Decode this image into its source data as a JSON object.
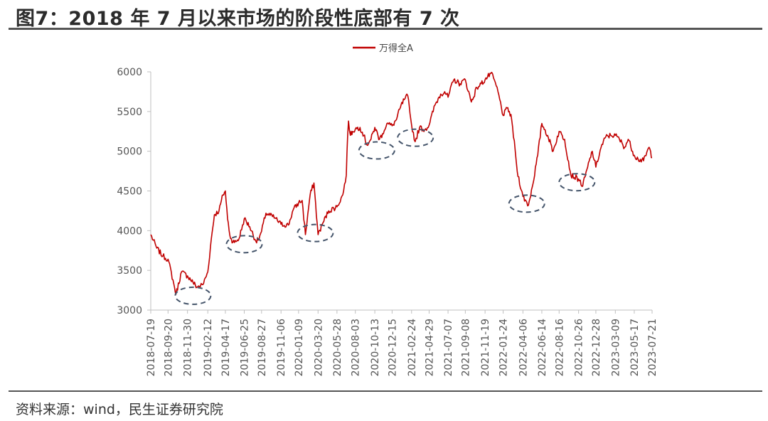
{
  "header": {
    "title": "图7：2018 年 7 月以来市场的阶段性底部有 7 次"
  },
  "footer": {
    "source": "资料来源：wind，民生证券研究院"
  },
  "colors": {
    "series": "#c00000",
    "bottom_marker": "#44546a",
    "axis": "#bfbfbf"
  },
  "chart_data": {
    "type": "line",
    "title": "",
    "xlabel": "",
    "ylabel": "",
    "ylim": [
      3000,
      6000
    ],
    "y_ticks": [
      3000,
      3500,
      4000,
      4500,
      5000,
      5500,
      6000
    ],
    "x_tick_labels": [
      "2018-07-19",
      "2018-09-20",
      "2018-11-30",
      "2019-02-12",
      "2019-04-17",
      "2019-06-25",
      "2019-08-27",
      "2019-11-06",
      "2020-01-09",
      "2020-03-20",
      "2020-05-28",
      "2020-08-03",
      "2020-10-13",
      "2020-12-15",
      "2021-02-24",
      "2021-04-29",
      "2021-07-07",
      "2021-09-08",
      "2021-11-19",
      "2022-01-24",
      "2022-04-06",
      "2022-06-14",
      "2022-08-16",
      "2022-10-26",
      "2022-12-28",
      "2023-03-09",
      "2023-05-17",
      "2023-07-21"
    ],
    "legend": "top-center",
    "grid": false,
    "series": [
      {
        "name": "万得全A",
        "x": [
          "2018-07-19",
          "2018-08-10",
          "2018-09-01",
          "2018-09-20",
          "2018-10-11",
          "2018-10-19",
          "2018-11-08",
          "2018-11-30",
          "2018-12-20",
          "2019-01-03",
          "2019-01-25",
          "2019-02-12",
          "2019-02-25",
          "2019-03-08",
          "2019-03-25",
          "2019-04-08",
          "2019-04-17",
          "2019-04-25",
          "2019-05-06",
          "2019-05-20",
          "2019-06-06",
          "2019-06-25",
          "2019-07-15",
          "2019-08-06",
          "2019-08-15",
          "2019-08-27",
          "2019-09-12",
          "2019-10-15",
          "2019-11-06",
          "2019-12-03",
          "2019-12-20",
          "2020-01-09",
          "2020-01-22",
          "2020-02-03",
          "2020-02-20",
          "2020-03-05",
          "2020-03-20",
          "2020-04-07",
          "2020-04-28",
          "2020-05-28",
          "2020-06-18",
          "2020-07-01",
          "2020-07-06",
          "2020-07-09",
          "2020-07-16",
          "2020-07-24",
          "2020-08-03",
          "2020-08-20",
          "2020-09-03",
          "2020-09-14",
          "2020-09-29",
          "2020-10-13",
          "2020-10-30",
          "2020-11-10",
          "2020-11-26",
          "2020-12-15",
          "2020-12-31",
          "2021-01-14",
          "2021-01-28",
          "2021-02-10",
          "2021-02-18",
          "2021-02-24",
          "2021-03-09",
          "2021-03-25",
          "2021-04-13",
          "2021-04-29",
          "2021-05-20",
          "2021-06-10",
          "2021-06-25",
          "2021-07-07",
          "2021-07-28",
          "2021-08-20",
          "2021-09-08",
          "2021-09-30",
          "2021-10-20",
          "2021-11-05",
          "2021-11-19",
          "2021-12-10",
          "2021-12-20",
          "2022-01-05",
          "2022-01-24",
          "2022-02-10",
          "2022-02-24",
          "2022-03-09",
          "2022-03-16",
          "2022-04-06",
          "2022-04-26",
          "2022-05-10",
          "2022-05-30",
          "2022-06-14",
          "2022-07-05",
          "2022-07-25",
          "2022-08-16",
          "2022-09-05",
          "2022-09-28",
          "2022-10-26",
          "2022-11-10",
          "2022-11-28",
          "2022-12-15",
          "2022-12-28",
          "2023-01-16",
          "2023-02-02",
          "2023-02-20",
          "2023-03-09",
          "2023-03-24",
          "2023-04-12",
          "2023-04-25",
          "2023-05-17",
          "2023-05-31",
          "2023-06-20",
          "2023-07-10",
          "2023-07-21"
        ],
        "values": [
          3950,
          3780,
          3680,
          3640,
          3330,
          3200,
          3480,
          3430,
          3350,
          3290,
          3320,
          3480,
          3900,
          4200,
          4250,
          4450,
          4500,
          4150,
          3900,
          3850,
          3900,
          4150,
          4050,
          3870,
          3880,
          3990,
          4220,
          4160,
          4080,
          4070,
          4260,
          4350,
          4380,
          3950,
          4450,
          4600,
          3950,
          4100,
          4250,
          4300,
          4450,
          4700,
          5200,
          5380,
          5200,
          5250,
          5280,
          5300,
          5200,
          5080,
          5150,
          5300,
          5150,
          5220,
          5350,
          5320,
          5400,
          5550,
          5650,
          5700,
          5480,
          5330,
          5120,
          5300,
          5270,
          5330,
          5580,
          5720,
          5750,
          5680,
          5900,
          5850,
          5900,
          5620,
          5800,
          5850,
          5900,
          5980,
          5920,
          5750,
          5450,
          5550,
          5400,
          5000,
          4750,
          4430,
          4320,
          4550,
          4950,
          5350,
          5200,
          5000,
          5250,
          5150,
          4700,
          4650,
          4560,
          4800,
          5000,
          4800,
          5050,
          5180,
          5200,
          5200,
          5150,
          5050,
          5150,
          4950,
          4900,
          4880,
          5050,
          4920
        ]
      }
    ],
    "annotations": [
      {
        "shape": "dashed-ellipse",
        "label": "bottom-1",
        "date": "2018-12-20",
        "value": 3180
      },
      {
        "shape": "dashed-ellipse",
        "label": "bottom-2",
        "date": "2019-06-25",
        "value": 3830
      },
      {
        "shape": "dashed-ellipse",
        "label": "bottom-3",
        "date": "2020-03-10",
        "value": 3970
      },
      {
        "shape": "dashed-ellipse",
        "label": "bottom-4",
        "date": "2020-10-20",
        "value": 5010
      },
      {
        "shape": "dashed-ellipse",
        "label": "bottom-5",
        "date": "2021-03-10",
        "value": 5170
      },
      {
        "shape": "dashed-ellipse",
        "label": "bottom-6",
        "date": "2022-04-20",
        "value": 4340
      },
      {
        "shape": "dashed-ellipse",
        "label": "bottom-7",
        "date": "2022-10-20",
        "value": 4610
      }
    ]
  }
}
